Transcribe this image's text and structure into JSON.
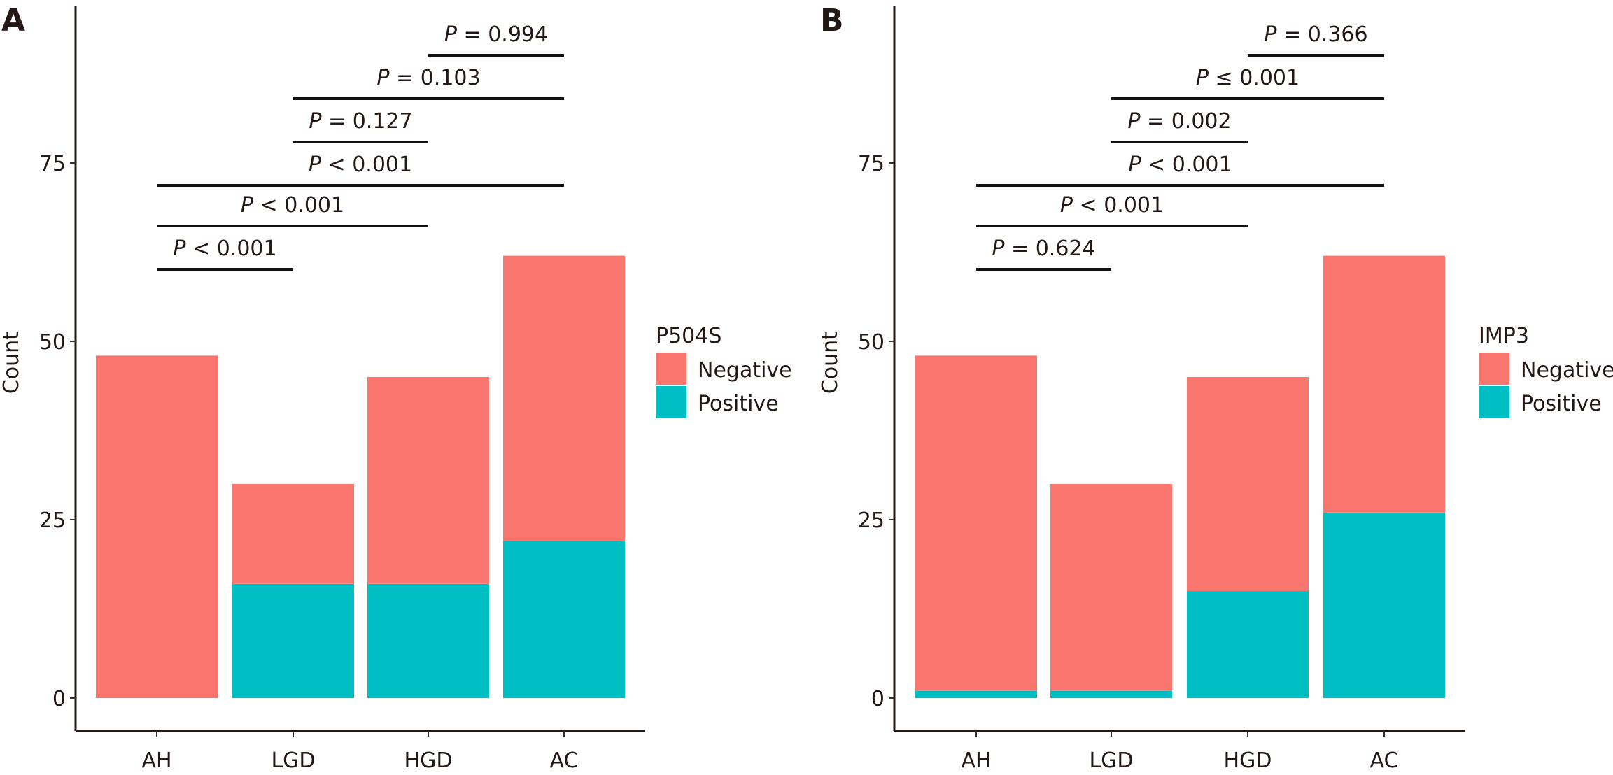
{
  "chart_data": [
    {
      "type": "bar",
      "stacked": true,
      "panel_label": "A",
      "title": "",
      "xlabel": "",
      "ylabel": "Count",
      "ylim": [
        0,
        95
      ],
      "yticks": [
        0,
        25,
        50,
        75
      ],
      "categories": [
        "AH",
        "LGD",
        "HGD",
        "AC"
      ],
      "series": [
        {
          "name": "Negative",
          "color": "#F8766D",
          "values": [
            48,
            14,
            29,
            40
          ]
        },
        {
          "name": "Positive",
          "color": "#00BFC4",
          "values": [
            0,
            16,
            16,
            22
          ]
        }
      ],
      "legend": {
        "title": "P504S",
        "placement": "right",
        "entries": [
          "Negative",
          "Positive"
        ]
      },
      "annotations": [
        {
          "from": "AH",
          "to": "LGD",
          "p_symbol": "P",
          "text": " < 0.001"
        },
        {
          "from": "AH",
          "to": "HGD",
          "p_symbol": "P",
          "text": " < 0.001"
        },
        {
          "from": "AH",
          "to": "AC",
          "p_symbol": "P",
          "text": " < 0.001"
        },
        {
          "from": "LGD",
          "to": "HGD",
          "p_symbol": "P",
          "text": " = 0.127"
        },
        {
          "from": "LGD",
          "to": "AC",
          "p_symbol": "P",
          "text": " = 0.103"
        },
        {
          "from": "HGD",
          "to": "AC",
          "p_symbol": "P",
          "text": " = 0.994"
        }
      ],
      "grid": false
    },
    {
      "type": "bar",
      "stacked": true,
      "panel_label": "B",
      "title": "",
      "xlabel": "",
      "ylabel": "Count",
      "ylim": [
        0,
        95
      ],
      "yticks": [
        0,
        25,
        50,
        75
      ],
      "categories": [
        "AH",
        "LGD",
        "HGD",
        "AC"
      ],
      "series": [
        {
          "name": "Negative",
          "color": "#F8766D",
          "values": [
            47,
            29,
            30,
            36
          ]
        },
        {
          "name": "Positive",
          "color": "#00BFC4",
          "values": [
            1,
            1,
            15,
            26
          ]
        }
      ],
      "legend": {
        "title": "IMP3",
        "placement": "right",
        "entries": [
          "Negative",
          "Positive"
        ]
      },
      "annotations": [
        {
          "from": "AH",
          "to": "LGD",
          "p_symbol": "P",
          "text": " = 0.624"
        },
        {
          "from": "AH",
          "to": "HGD",
          "p_symbol": "P",
          "text": " < 0.001"
        },
        {
          "from": "AH",
          "to": "AC",
          "p_symbol": "P",
          "text": " < 0.001"
        },
        {
          "from": "LGD",
          "to": "HGD",
          "p_symbol": "P",
          "text": " = 0.002"
        },
        {
          "from": "LGD",
          "to": "AC",
          "p_symbol": "P",
          "text": " ≤ 0.001"
        },
        {
          "from": "HGD",
          "to": "AC",
          "p_symbol": "P",
          "text": " = 0.366"
        }
      ],
      "grid": false
    }
  ]
}
